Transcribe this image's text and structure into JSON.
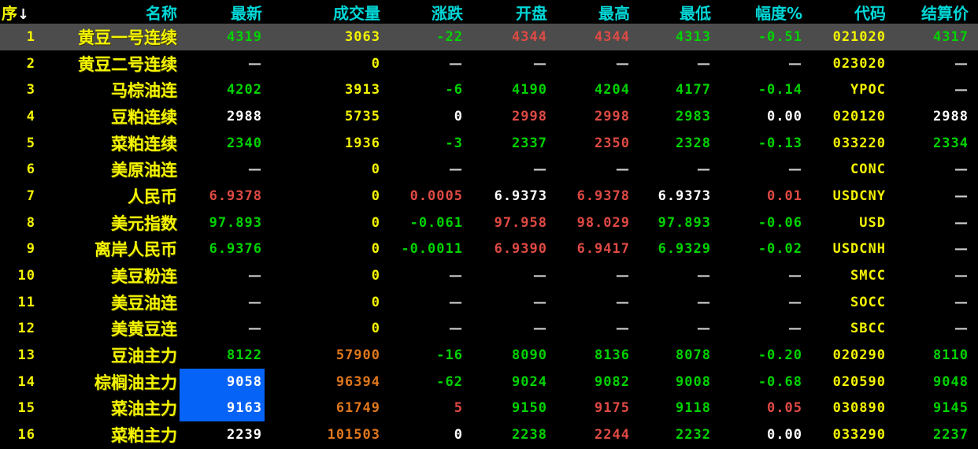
{
  "colors": {
    "background": "#000000",
    "header": "#00d7d7",
    "up": "#df4a44",
    "down": "#00d300",
    "neutral": "#ffffff",
    "yellow": "#f4f400",
    "orange": "#e0771c",
    "dash": "#d0d0d0",
    "selected_row_bg": "#4c4c4c",
    "cell_selection_bg": "#0663f7",
    "sort_arrow": "#ffffff"
  },
  "table": {
    "columns": [
      {
        "key": "seq",
        "label": "序",
        "sort_arrow": "↓"
      },
      {
        "key": "name",
        "label": "名称"
      },
      {
        "key": "last",
        "label": "最新"
      },
      {
        "key": "volume",
        "label": "成交量"
      },
      {
        "key": "change",
        "label": "涨跌"
      },
      {
        "key": "open",
        "label": "开盘"
      },
      {
        "key": "high",
        "label": "最高"
      },
      {
        "key": "low",
        "label": "最低"
      },
      {
        "key": "amp",
        "label": "幅度%"
      },
      {
        "key": "code",
        "label": "代码"
      },
      {
        "key": "settle",
        "label": "结算价"
      }
    ],
    "rows": [
      {
        "selected": true,
        "cells": [
          {
            "t": "1",
            "c": "seq"
          },
          {
            "t": "黄豆一号连续",
            "c": "name"
          },
          {
            "t": "4319",
            "c": "down"
          },
          {
            "t": "3063",
            "c": "vol"
          },
          {
            "t": "-22",
            "c": "down"
          },
          {
            "t": "4344",
            "c": "up"
          },
          {
            "t": "4344",
            "c": "up"
          },
          {
            "t": "4313",
            "c": "down"
          },
          {
            "t": "-0.51",
            "c": "down"
          },
          {
            "t": "021020",
            "c": "code"
          },
          {
            "t": "4317",
            "c": "down"
          }
        ]
      },
      {
        "cells": [
          {
            "t": "2",
            "c": "seq"
          },
          {
            "t": "黄豆二号连续",
            "c": "name"
          },
          {
            "t": "—",
            "c": "dash"
          },
          {
            "t": "0",
            "c": "vol"
          },
          {
            "t": "—",
            "c": "dash"
          },
          {
            "t": "—",
            "c": "dash"
          },
          {
            "t": "—",
            "c": "dash"
          },
          {
            "t": "—",
            "c": "dash"
          },
          {
            "t": "—",
            "c": "dash"
          },
          {
            "t": "023020",
            "c": "code"
          },
          {
            "t": "—",
            "c": "dash"
          }
        ]
      },
      {
        "cells": [
          {
            "t": "3",
            "c": "seq"
          },
          {
            "t": "马棕油连",
            "c": "name"
          },
          {
            "t": "4202",
            "c": "down"
          },
          {
            "t": "3913",
            "c": "vol"
          },
          {
            "t": "-6",
            "c": "down"
          },
          {
            "t": "4190",
            "c": "down"
          },
          {
            "t": "4204",
            "c": "down"
          },
          {
            "t": "4177",
            "c": "down"
          },
          {
            "t": "-0.14",
            "c": "down"
          },
          {
            "t": "YPOC",
            "c": "code"
          },
          {
            "t": "—",
            "c": "dash"
          }
        ]
      },
      {
        "cells": [
          {
            "t": "4",
            "c": "seq"
          },
          {
            "t": "豆粕连续",
            "c": "name"
          },
          {
            "t": "2988",
            "c": "flat"
          },
          {
            "t": "5735",
            "c": "vol"
          },
          {
            "t": "0",
            "c": "flat"
          },
          {
            "t": "2998",
            "c": "up"
          },
          {
            "t": "2998",
            "c": "up"
          },
          {
            "t": "2983",
            "c": "down"
          },
          {
            "t": "0.00",
            "c": "flat"
          },
          {
            "t": "020120",
            "c": "code"
          },
          {
            "t": "2988",
            "c": "flat"
          }
        ]
      },
      {
        "cells": [
          {
            "t": "5",
            "c": "seq"
          },
          {
            "t": "菜粕连续",
            "c": "name"
          },
          {
            "t": "2340",
            "c": "down"
          },
          {
            "t": "1936",
            "c": "vol"
          },
          {
            "t": "-3",
            "c": "down"
          },
          {
            "t": "2337",
            "c": "down"
          },
          {
            "t": "2350",
            "c": "up"
          },
          {
            "t": "2328",
            "c": "down"
          },
          {
            "t": "-0.13",
            "c": "down"
          },
          {
            "t": "033220",
            "c": "code"
          },
          {
            "t": "2334",
            "c": "down"
          }
        ]
      },
      {
        "cells": [
          {
            "t": "6",
            "c": "seq"
          },
          {
            "t": "美原油连",
            "c": "name"
          },
          {
            "t": "—",
            "c": "dash"
          },
          {
            "t": "0",
            "c": "vol"
          },
          {
            "t": "—",
            "c": "dash"
          },
          {
            "t": "—",
            "c": "dash"
          },
          {
            "t": "—",
            "c": "dash"
          },
          {
            "t": "—",
            "c": "dash"
          },
          {
            "t": "—",
            "c": "dash"
          },
          {
            "t": "CONC",
            "c": "code"
          },
          {
            "t": "—",
            "c": "dash"
          }
        ]
      },
      {
        "cells": [
          {
            "t": "7",
            "c": "seq"
          },
          {
            "t": "人民币",
            "c": "name"
          },
          {
            "t": "6.9378",
            "c": "up"
          },
          {
            "t": "0",
            "c": "vol"
          },
          {
            "t": "0.0005",
            "c": "up"
          },
          {
            "t": "6.9373",
            "c": "flat"
          },
          {
            "t": "6.9378",
            "c": "up"
          },
          {
            "t": "6.9373",
            "c": "flat"
          },
          {
            "t": "0.01",
            "c": "up"
          },
          {
            "t": "USDCNY",
            "c": "code"
          },
          {
            "t": "—",
            "c": "dash"
          }
        ]
      },
      {
        "cells": [
          {
            "t": "8",
            "c": "seq"
          },
          {
            "t": "美元指数",
            "c": "name"
          },
          {
            "t": "97.893",
            "c": "down"
          },
          {
            "t": "0",
            "c": "vol"
          },
          {
            "t": "-0.061",
            "c": "down"
          },
          {
            "t": "97.958",
            "c": "up"
          },
          {
            "t": "98.029",
            "c": "up"
          },
          {
            "t": "97.893",
            "c": "down"
          },
          {
            "t": "-0.06",
            "c": "down"
          },
          {
            "t": "USD",
            "c": "code"
          },
          {
            "t": "—",
            "c": "dash"
          }
        ]
      },
      {
        "cells": [
          {
            "t": "9",
            "c": "seq"
          },
          {
            "t": "离岸人民币",
            "c": "name"
          },
          {
            "t": "6.9376",
            "c": "down"
          },
          {
            "t": "0",
            "c": "vol"
          },
          {
            "t": "-0.0011",
            "c": "down"
          },
          {
            "t": "6.9390",
            "c": "up"
          },
          {
            "t": "6.9417",
            "c": "up"
          },
          {
            "t": "6.9329",
            "c": "down"
          },
          {
            "t": "-0.02",
            "c": "down"
          },
          {
            "t": "USDCNH",
            "c": "code"
          },
          {
            "t": "—",
            "c": "dash"
          }
        ]
      },
      {
        "cells": [
          {
            "t": "10",
            "c": "seq"
          },
          {
            "t": "美豆粉连",
            "c": "name"
          },
          {
            "t": "—",
            "c": "dash"
          },
          {
            "t": "0",
            "c": "vol"
          },
          {
            "t": "—",
            "c": "dash"
          },
          {
            "t": "—",
            "c": "dash"
          },
          {
            "t": "—",
            "c": "dash"
          },
          {
            "t": "—",
            "c": "dash"
          },
          {
            "t": "—",
            "c": "dash"
          },
          {
            "t": "SMCC",
            "c": "code"
          },
          {
            "t": "—",
            "c": "dash"
          }
        ]
      },
      {
        "cells": [
          {
            "t": "11",
            "c": "seq"
          },
          {
            "t": "美豆油连",
            "c": "name"
          },
          {
            "t": "—",
            "c": "dash"
          },
          {
            "t": "0",
            "c": "vol"
          },
          {
            "t": "—",
            "c": "dash"
          },
          {
            "t": "—",
            "c": "dash"
          },
          {
            "t": "—",
            "c": "dash"
          },
          {
            "t": "—",
            "c": "dash"
          },
          {
            "t": "—",
            "c": "dash"
          },
          {
            "t": "SOCC",
            "c": "code"
          },
          {
            "t": "—",
            "c": "dash"
          }
        ]
      },
      {
        "cells": [
          {
            "t": "12",
            "c": "seq"
          },
          {
            "t": "美黄豆连",
            "c": "name"
          },
          {
            "t": "—",
            "c": "dash"
          },
          {
            "t": "0",
            "c": "vol"
          },
          {
            "t": "—",
            "c": "dash"
          },
          {
            "t": "—",
            "c": "dash"
          },
          {
            "t": "—",
            "c": "dash"
          },
          {
            "t": "—",
            "c": "dash"
          },
          {
            "t": "—",
            "c": "dash"
          },
          {
            "t": "SBCC",
            "c": "code"
          },
          {
            "t": "—",
            "c": "dash"
          }
        ]
      },
      {
        "cells": [
          {
            "t": "13",
            "c": "seq"
          },
          {
            "t": "豆油主力",
            "c": "name"
          },
          {
            "t": "8122",
            "c": "down"
          },
          {
            "t": "57900",
            "c": "volhi"
          },
          {
            "t": "-16",
            "c": "down"
          },
          {
            "t": "8090",
            "c": "down"
          },
          {
            "t": "8136",
            "c": "down"
          },
          {
            "t": "8078",
            "c": "down"
          },
          {
            "t": "-0.20",
            "c": "down"
          },
          {
            "t": "020290",
            "c": "code"
          },
          {
            "t": "8110",
            "c": "down"
          }
        ]
      },
      {
        "cells": [
          {
            "t": "14",
            "c": "seq"
          },
          {
            "t": "棕榈油主力",
            "c": "name"
          },
          {
            "t": "9058",
            "c": "flat",
            "sel": true
          },
          {
            "t": "96394",
            "c": "volhi"
          },
          {
            "t": "-62",
            "c": "down"
          },
          {
            "t": "9024",
            "c": "down"
          },
          {
            "t": "9082",
            "c": "down"
          },
          {
            "t": "9008",
            "c": "down"
          },
          {
            "t": "-0.68",
            "c": "down"
          },
          {
            "t": "020590",
            "c": "code"
          },
          {
            "t": "9048",
            "c": "down"
          }
        ]
      },
      {
        "cells": [
          {
            "t": "15",
            "c": "seq"
          },
          {
            "t": "菜油主力",
            "c": "name"
          },
          {
            "t": "9163",
            "c": "flat",
            "sel": true
          },
          {
            "t": "61749",
            "c": "volhi"
          },
          {
            "t": "5",
            "c": "up"
          },
          {
            "t": "9150",
            "c": "down"
          },
          {
            "t": "9175",
            "c": "up"
          },
          {
            "t": "9118",
            "c": "down"
          },
          {
            "t": "0.05",
            "c": "up"
          },
          {
            "t": "030890",
            "c": "code"
          },
          {
            "t": "9145",
            "c": "down"
          }
        ]
      },
      {
        "cells": [
          {
            "t": "16",
            "c": "seq"
          },
          {
            "t": "菜粕主力",
            "c": "name"
          },
          {
            "t": "2239",
            "c": "flat"
          },
          {
            "t": "101503",
            "c": "volhi"
          },
          {
            "t": "0",
            "c": "flat"
          },
          {
            "t": "2238",
            "c": "down"
          },
          {
            "t": "2244",
            "c": "up"
          },
          {
            "t": "2232",
            "c": "down"
          },
          {
            "t": "0.00",
            "c": "flat"
          },
          {
            "t": "033290",
            "c": "code"
          },
          {
            "t": "2237",
            "c": "down"
          }
        ]
      }
    ]
  }
}
